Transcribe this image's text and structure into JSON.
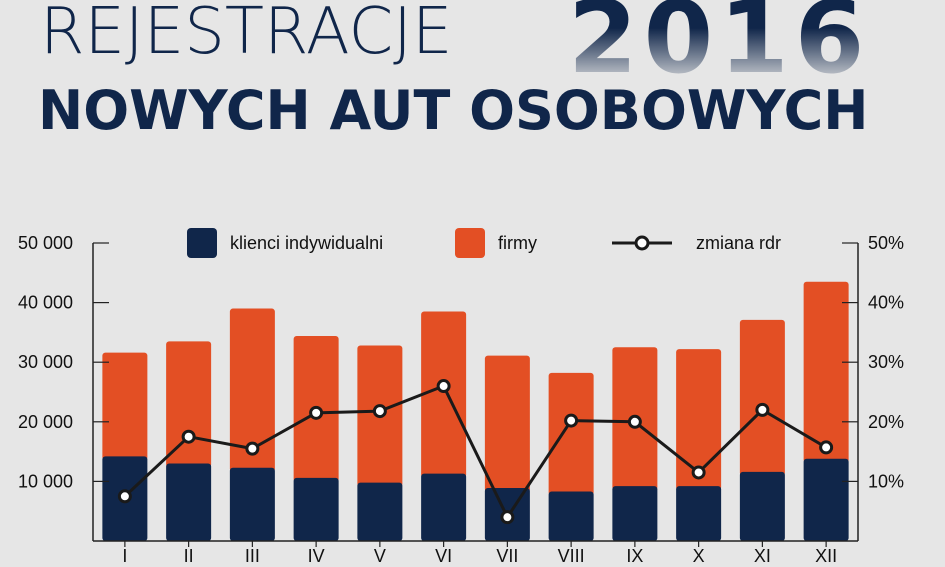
{
  "header": {
    "title_line1": "REJESTRACJE",
    "title_year": "2016",
    "title_line2": "NOWYCH AUT OSOBOWYCH"
  },
  "colors": {
    "individual": "#10264a",
    "companies": "#e34f24",
    "line": "#1a1a1a",
    "background": "#e6e6e6"
  },
  "chart_data": {
    "type": "bar",
    "stacked": true,
    "categories": [
      "I",
      "II",
      "III",
      "IV",
      "V",
      "VI",
      "VII",
      "VIII",
      "IX",
      "X",
      "XI",
      "XII"
    ],
    "series": [
      {
        "name": "klienci indywidualni",
        "values": [
          14200,
          13000,
          12300,
          10600,
          9800,
          11300,
          8900,
          8300,
          9200,
          9200,
          11600,
          13800
        ]
      },
      {
        "name": "firmy",
        "values": [
          17400,
          20500,
          26700,
          23800,
          23000,
          27200,
          22200,
          19900,
          23300,
          23000,
          25500,
          29700
        ]
      }
    ],
    "line_series": {
      "name": "zmiana rdr",
      "values": [
        7.5,
        17.5,
        15.5,
        21.5,
        21.8,
        26.0,
        4.0,
        20.2,
        20.0,
        11.5,
        22.0,
        15.7
      ]
    },
    "y_left": {
      "ylim": [
        0,
        50000
      ],
      "ticks": [
        "10 000",
        "20 000",
        "30 000",
        "40 000",
        "50 000"
      ],
      "tick_values": [
        10000,
        20000,
        30000,
        40000,
        50000
      ]
    },
    "y_right": {
      "ylim": [
        0,
        50
      ],
      "ticks": [
        "10%",
        "20%",
        "30%",
        "40%",
        "50%"
      ],
      "tick_values": [
        10,
        20,
        30,
        40,
        50
      ]
    },
    "legend": {
      "position": "top",
      "items": [
        "klienci indywidualni",
        "firmy",
        "zmiana rdr"
      ]
    }
  }
}
